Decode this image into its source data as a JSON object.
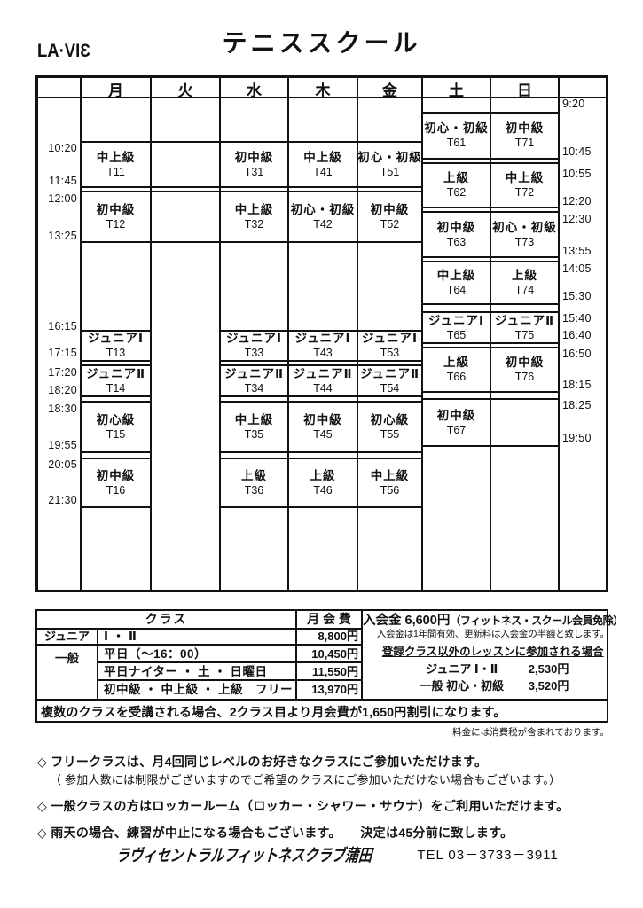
{
  "logo": "LA·VIƐ",
  "title": "テニススクール",
  "schedule": {
    "days": [
      "月",
      "火",
      "水",
      "木",
      "金",
      "土",
      "日"
    ],
    "left_times": [
      "10:20",
      "11:45",
      "12:00",
      "13:25",
      "16:15",
      "17:15",
      "17:20",
      "18:20",
      "18:30",
      "19:55",
      "20:05",
      "21:30"
    ],
    "right_times": [
      "9:20",
      "10:45",
      "10:55",
      "12:20",
      "12:30",
      "13:55",
      "14:05",
      "15:30",
      "15:40",
      "16:40",
      "16:50",
      "18:15",
      "18:25",
      "19:50"
    ],
    "blocks": [
      {
        "day": "月",
        "level": "中上級",
        "code": "T11",
        "start": "10:20",
        "end": "11:45"
      },
      {
        "day": "月",
        "level": "初中級",
        "code": "T12",
        "start": "12:00",
        "end": "13:25"
      },
      {
        "day": "月",
        "level": "ジュニアⅠ",
        "code": "T13",
        "start": "16:15",
        "end": "17:15"
      },
      {
        "day": "月",
        "level": "ジュニアⅡ",
        "code": "T14",
        "start": "17:20",
        "end": "18:20"
      },
      {
        "day": "月",
        "level": "初心級",
        "code": "T15",
        "start": "18:30",
        "end": "19:55"
      },
      {
        "day": "月",
        "level": "初中級",
        "code": "T16",
        "start": "20:05",
        "end": "21:30"
      },
      {
        "day": "水",
        "level": "初中級",
        "code": "T31",
        "start": "10:20",
        "end": "11:45"
      },
      {
        "day": "水",
        "level": "中上級",
        "code": "T32",
        "start": "12:00",
        "end": "13:25"
      },
      {
        "day": "水",
        "level": "ジュニアⅠ",
        "code": "T33",
        "start": "16:15",
        "end": "17:15"
      },
      {
        "day": "水",
        "level": "ジュニアⅡ",
        "code": "T34",
        "start": "17:20",
        "end": "18:20"
      },
      {
        "day": "水",
        "level": "中上級",
        "code": "T35",
        "start": "18:30",
        "end": "19:55"
      },
      {
        "day": "水",
        "level": "上級",
        "code": "T36",
        "start": "20:05",
        "end": "21:30"
      },
      {
        "day": "木",
        "level": "中上級",
        "code": "T41",
        "start": "10:20",
        "end": "11:45"
      },
      {
        "day": "木",
        "level": "初心・初級",
        "code": "T42",
        "start": "12:00",
        "end": "13:25"
      },
      {
        "day": "木",
        "level": "ジュニアⅠ",
        "code": "T43",
        "start": "16:15",
        "end": "17:15"
      },
      {
        "day": "木",
        "level": "ジュニアⅡ",
        "code": "T44",
        "start": "17:20",
        "end": "18:20"
      },
      {
        "day": "木",
        "level": "初中級",
        "code": "T45",
        "start": "18:30",
        "end": "19:55"
      },
      {
        "day": "木",
        "level": "上級",
        "code": "T46",
        "start": "20:05",
        "end": "21:30"
      },
      {
        "day": "金",
        "level": "初心・初級",
        "code": "T51",
        "start": "10:20",
        "end": "11:45"
      },
      {
        "day": "金",
        "level": "初中級",
        "code": "T52",
        "start": "12:00",
        "end": "13:25"
      },
      {
        "day": "金",
        "level": "ジュニアⅠ",
        "code": "T53",
        "start": "16:15",
        "end": "17:15"
      },
      {
        "day": "金",
        "level": "ジュニアⅡ",
        "code": "T54",
        "start": "17:20",
        "end": "18:20"
      },
      {
        "day": "金",
        "level": "初心級",
        "code": "T55",
        "start": "18:30",
        "end": "19:55"
      },
      {
        "day": "金",
        "level": "中上級",
        "code": "T56",
        "start": "20:05",
        "end": "21:30"
      },
      {
        "day": "土",
        "level": "初心・初級",
        "code": "T61",
        "start": "9:20",
        "end": "10:45"
      },
      {
        "day": "土",
        "level": "上級",
        "code": "T62",
        "start": "10:55",
        "end": "12:20"
      },
      {
        "day": "土",
        "level": "初中級",
        "code": "T63",
        "start": "12:30",
        "end": "13:55"
      },
      {
        "day": "土",
        "level": "中上級",
        "code": "T64",
        "start": "14:05",
        "end": "15:30"
      },
      {
        "day": "土",
        "level": "ジュニアⅠ",
        "code": "T65",
        "start": "15:40",
        "end": "16:40"
      },
      {
        "day": "土",
        "level": "上級",
        "code": "T66",
        "start": "16:50",
        "end": "18:15"
      },
      {
        "day": "土",
        "level": "初中級",
        "code": "T67",
        "start": "18:25",
        "end": "19:50"
      },
      {
        "day": "日",
        "level": "初中級",
        "code": "T71",
        "start": "9:20",
        "end": "10:45"
      },
      {
        "day": "日",
        "level": "中上級",
        "code": "T72",
        "start": "10:55",
        "end": "12:20"
      },
      {
        "day": "日",
        "level": "初心・初級",
        "code": "T73",
        "start": "12:30",
        "end": "13:55"
      },
      {
        "day": "日",
        "level": "上級",
        "code": "T74",
        "start": "14:05",
        "end": "15:30"
      },
      {
        "day": "日",
        "level": "ジュニアⅡ",
        "code": "T75",
        "start": "15:40",
        "end": "16:40"
      },
      {
        "day": "日",
        "level": "初中級",
        "code": "T76",
        "start": "16:50",
        "end": "18:15"
      }
    ]
  },
  "fees": {
    "header_class": "クラス",
    "header_monthly": "月 会 費",
    "rows": [
      {
        "category": "ジュニア",
        "desc": "Ⅰ ・ Ⅱ",
        "price": "8,800円"
      },
      {
        "category": "一般",
        "desc": "平日（～16：00）",
        "price": "10,450円"
      },
      {
        "category": "",
        "desc": "平日ナイター ・ 土 ・ 日曜日",
        "price": "11,550円"
      },
      {
        "category": "",
        "desc": "初中級 ・ 中上級 ・ 上級　フリー",
        "price": "13,970円"
      }
    ],
    "discount_note": "複数のクラスを受講される場合、2クラス目より月会費が1,650円割引になります。",
    "tax_note": "料金には消費税が含まれております。"
  },
  "admission": {
    "line1_main": "入会金 6,600円",
    "line1_paren": "（フィットネス・スクール会員免除）",
    "line2": "入会金は1年間有効、更新料は入会金の半額と致します。",
    "line3": "登録クラス以外のレッスンに参加される場合",
    "items": [
      {
        "label": "ジュニア Ⅰ・Ⅱ",
        "price": "2,530円"
      },
      {
        "label": "一般 初心・初級",
        "price": "3,520円"
      }
    ]
  },
  "notes": [
    {
      "text": "◇ フリークラスは、月4回同じレベルのお好きなクラスにご参加いただけます。",
      "sub": "（ 参加人数には制限がございますのでご希望のクラスにご参加いただけない場合もございます。）"
    },
    {
      "text": "◇ 一般クラスの方はロッカールーム（ロッカー・シャワー・サウナ）をご利用いただけます。",
      "sub": ""
    },
    {
      "text": "◇ 雨天の場合、練習が中止になる場合もございます。　　決定は45分前に致します。",
      "sub": ""
    }
  ],
  "footer": {
    "club": "ラヴィセントラルフィットネスクラブ蒲田",
    "tel": "TEL 03－3733－3911"
  }
}
